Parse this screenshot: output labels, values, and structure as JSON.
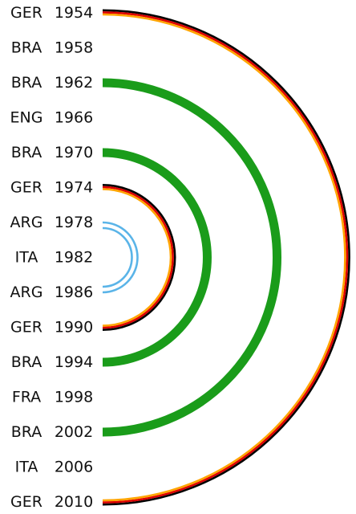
{
  "rows": [
    {
      "team": "GER",
      "year": "1954"
    },
    {
      "team": "BRA",
      "year": "1958"
    },
    {
      "team": "BRA",
      "year": "1962"
    },
    {
      "team": "ENG",
      "year": "1966"
    },
    {
      "team": "BRA",
      "year": "1970"
    },
    {
      "team": "GER",
      "year": "1974"
    },
    {
      "team": "ARG",
      "year": "1978"
    },
    {
      "team": "ITA",
      "year": "1982"
    },
    {
      "team": "ARG",
      "year": "1986"
    },
    {
      "team": "GER",
      "year": "1990"
    },
    {
      "team": "BRA",
      "year": "1994"
    },
    {
      "team": "FRA",
      "year": "1998"
    },
    {
      "team": "BRA",
      "year": "2002"
    },
    {
      "team": "ITA",
      "year": "2006"
    },
    {
      "team": "GER",
      "year": "2010"
    }
  ],
  "arcs": [
    {
      "team": "GER",
      "from_year": "1954",
      "to_year": "2010",
      "style": "germany"
    },
    {
      "team": "BRA",
      "from_year": "1962",
      "to_year": "2002",
      "style": "brazil"
    },
    {
      "team": "BRA",
      "from_year": "1970",
      "to_year": "1994",
      "style": "brazil"
    },
    {
      "team": "GER",
      "from_year": "1974",
      "to_year": "1990",
      "style": "germany"
    },
    {
      "team": "ARG",
      "from_year": "1978",
      "to_year": "1986",
      "style": "argentina"
    }
  ],
  "styles": {
    "germany": [
      "#000000",
      "#dd0000",
      "#ffa500"
    ],
    "brazil": [
      "#1a9c1a"
    ],
    "argentina": [
      "#5ab4e8",
      "#ffffff",
      "#5ab4e8"
    ]
  }
}
